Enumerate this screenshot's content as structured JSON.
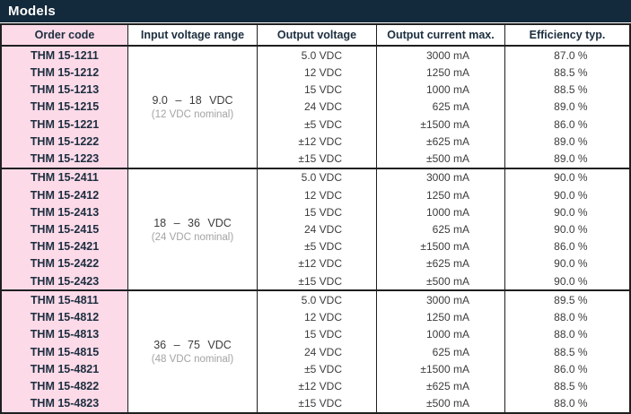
{
  "title": "Models",
  "colors": {
    "title_bar_bg": "#13293c",
    "title_text": "#ffffff",
    "order_code_bg": "#fcdae8",
    "border": "#1f1f1f",
    "data_text": "#3c3c3c",
    "header_text": "#1c2e3f",
    "nominal_text": "#a3a3a3"
  },
  "table": {
    "headers": [
      "Order code",
      "Input voltage range",
      "Output voltage",
      "Output current max.",
      "Efficiency typ."
    ],
    "groups": [
      {
        "input_range": "9.0 – 18 VDC",
        "input_nominal": "(12 VDC nominal)",
        "rows": [
          {
            "order_code": "THM 15-1211",
            "output_voltage": "5.0 VDC",
            "output_current": "3000 mA",
            "efficiency": "87.0 %"
          },
          {
            "order_code": "THM 15-1212",
            "output_voltage": "12 VDC",
            "output_current": "1250 mA",
            "efficiency": "88.5 %"
          },
          {
            "order_code": "THM 15-1213",
            "output_voltage": "15 VDC",
            "output_current": "1000 mA",
            "efficiency": "88.5 %"
          },
          {
            "order_code": "THM 15-1215",
            "output_voltage": "24 VDC",
            "output_current": "625 mA",
            "efficiency": "89.0 %"
          },
          {
            "order_code": "THM 15-1221",
            "output_voltage": "±5 VDC",
            "output_current": "±1500 mA",
            "efficiency": "86.0 %"
          },
          {
            "order_code": "THM 15-1222",
            "output_voltage": "±12 VDC",
            "output_current": "±625 mA",
            "efficiency": "89.0 %"
          },
          {
            "order_code": "THM 15-1223",
            "output_voltage": "±15 VDC",
            "output_current": "±500 mA",
            "efficiency": "89.0 %"
          }
        ]
      },
      {
        "input_range": "18 – 36 VDC",
        "input_nominal": "(24 VDC nominal)",
        "rows": [
          {
            "order_code": "THM 15-2411",
            "output_voltage": "5.0 VDC",
            "output_current": "3000 mA",
            "efficiency": "90.0 %"
          },
          {
            "order_code": "THM 15-2412",
            "output_voltage": "12 VDC",
            "output_current": "1250 mA",
            "efficiency": "90.0 %"
          },
          {
            "order_code": "THM 15-2413",
            "output_voltage": "15 VDC",
            "output_current": "1000 mA",
            "efficiency": "90.0 %"
          },
          {
            "order_code": "THM 15-2415",
            "output_voltage": "24 VDC",
            "output_current": "625 mA",
            "efficiency": "90.0 %"
          },
          {
            "order_code": "THM 15-2421",
            "output_voltage": "±5 VDC",
            "output_current": "±1500 mA",
            "efficiency": "86.0 %"
          },
          {
            "order_code": "THM 15-2422",
            "output_voltage": "±12 VDC",
            "output_current": "±625 mA",
            "efficiency": "90.0 %"
          },
          {
            "order_code": "THM 15-2423",
            "output_voltage": "±15 VDC",
            "output_current": "±500 mA",
            "efficiency": "90.0 %"
          }
        ]
      },
      {
        "input_range": "36 – 75 VDC",
        "input_nominal": "(48 VDC nominal)",
        "rows": [
          {
            "order_code": "THM 15-4811",
            "output_voltage": "5.0 VDC",
            "output_current": "3000 mA",
            "efficiency": "89.5 %"
          },
          {
            "order_code": "THM 15-4812",
            "output_voltage": "12 VDC",
            "output_current": "1250 mA",
            "efficiency": "88.0 %"
          },
          {
            "order_code": "THM 15-4813",
            "output_voltage": "15 VDC",
            "output_current": "1000 mA",
            "efficiency": "88.0 %"
          },
          {
            "order_code": "THM 15-4815",
            "output_voltage": "24 VDC",
            "output_current": "625 mA",
            "efficiency": "88.5 %"
          },
          {
            "order_code": "THM 15-4821",
            "output_voltage": "±5 VDC",
            "output_current": "±1500 mA",
            "efficiency": "86.0 %"
          },
          {
            "order_code": "THM 15-4822",
            "output_voltage": "±12 VDC",
            "output_current": "±625 mA",
            "efficiency": "88.5 %"
          },
          {
            "order_code": "THM 15-4823",
            "output_voltage": "±15 VDC",
            "output_current": "±500 mA",
            "efficiency": "88.0 %"
          }
        ]
      }
    ]
  }
}
